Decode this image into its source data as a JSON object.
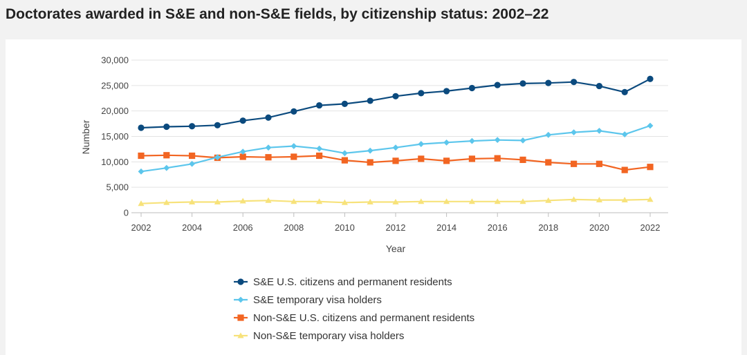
{
  "title": "Doctorates awarded in S&E and non-S&E fields, by citizenship status: 2002–22",
  "chart_data": {
    "type": "line",
    "title": "Doctorates awarded in S&E and non-S&E fields, by citizenship status: 2002–22",
    "xlabel": "Year",
    "ylabel": "Number",
    "ylim": [
      0,
      30000
    ],
    "xlim": [
      2002,
      2022
    ],
    "y_ticks": [
      0,
      5000,
      10000,
      15000,
      20000,
      25000,
      30000
    ],
    "y_tick_labels": [
      "0",
      "5,000",
      "10,000",
      "15,000",
      "20,000",
      "25,000",
      "30,000"
    ],
    "x_ticks": [
      2002,
      2004,
      2006,
      2008,
      2010,
      2012,
      2014,
      2016,
      2018,
      2020,
      2022
    ],
    "x_tick_labels": [
      "2002",
      "2004",
      "2006",
      "2008",
      "2010",
      "2012",
      "2014",
      "2016",
      "2018",
      "2020",
      "2022"
    ],
    "grid": true,
    "legend_position": "bottom",
    "x": [
      2002,
      2003,
      2004,
      2005,
      2006,
      2007,
      2008,
      2009,
      2010,
      2011,
      2012,
      2013,
      2014,
      2015,
      2016,
      2017,
      2018,
      2019,
      2020,
      2021,
      2022
    ],
    "series": [
      {
        "name": "S&E U.S. citizens and permanent residents",
        "color": "#0b4a7e",
        "marker": "circle",
        "values": [
          16700,
          16900,
          17000,
          17200,
          18100,
          18700,
          19900,
          21100,
          21400,
          22000,
          22900,
          23500,
          23900,
          24500,
          25100,
          25400,
          25500,
          25700,
          24900,
          23700,
          26300
        ]
      },
      {
        "name": "S&E temporary visa holders",
        "color": "#5cc6ec",
        "marker": "diamond",
        "values": [
          8100,
          8800,
          9600,
          10900,
          12000,
          12800,
          13100,
          12600,
          11700,
          12200,
          12800,
          13500,
          13800,
          14100,
          14300,
          14200,
          15300,
          15800,
          16100,
          15400,
          17100
        ]
      },
      {
        "name": "Non-S&E U.S. citizens and permanent residents",
        "color": "#f26522",
        "marker": "square",
        "values": [
          11200,
          11300,
          11200,
          10800,
          11000,
          10900,
          11000,
          11200,
          10300,
          9900,
          10200,
          10600,
          10200,
          10600,
          10700,
          10400,
          9900,
          9600,
          9600,
          8400,
          9000
        ]
      },
      {
        "name": "Non-S&E temporary visa holders",
        "color": "#f7e27a",
        "marker": "triangle",
        "values": [
          1800,
          2000,
          2100,
          2100,
          2300,
          2400,
          2200,
          2200,
          2000,
          2100,
          2100,
          2200,
          2200,
          2200,
          2200,
          2200,
          2400,
          2600,
          2500,
          2500,
          2600
        ]
      }
    ]
  }
}
